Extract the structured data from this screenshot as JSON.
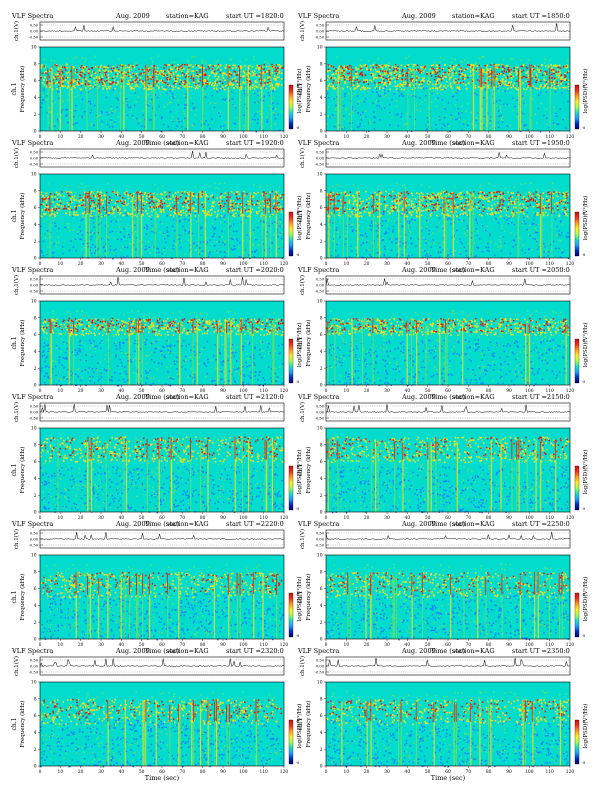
{
  "labels": {
    "header_title": "VLF Spectra",
    "header_date": "Aug. 2009",
    "header_station": "station=KAG",
    "header_start": "start UT =",
    "ch_label": "ch.1(V)",
    "ch_ticks": [
      "0.50",
      "0.00",
      "-0.50"
    ],
    "freq_label_ch": "ch.1",
    "freq_label": "Frequency (kHz)",
    "freq_ticks": [
      "0",
      "2",
      "4",
      "6",
      "8",
      "10"
    ],
    "time_label": "Time (sec)",
    "time_ticks": [
      "0",
      "10",
      "20",
      "30",
      "40",
      "50",
      "60",
      "70",
      "80",
      "90",
      "100",
      "110",
      "120"
    ],
    "colorbar_label": "log(PSD)(V²/Hz)",
    "colorbar_ticks": [
      "-6",
      "-8"
    ]
  },
  "colors": {
    "background": "#01dccd",
    "low": "#1e7dff",
    "mid": "#60e070",
    "high": "#f0e21f",
    "peak": "#e11414",
    "colorbar_stops": [
      "#cc1010",
      "#ee3020",
      "#ff9a20",
      "#ffee20",
      "#a8ff50",
      "#20e0c0",
      "#20a0ff",
      "#0030c0",
      "#000060"
    ]
  },
  "chart_data": [
    {
      "type": "heatmap",
      "start_ut": "1820:0",
      "x_range": [
        0,
        120
      ],
      "y_range_khz": [
        0,
        10
      ],
      "ch_range_v": [
        -0.5,
        0.5
      ],
      "activity": 0.75,
      "band_khz": [
        5,
        8
      ]
    },
    {
      "type": "heatmap",
      "start_ut": "1850:0",
      "x_range": [
        0,
        120
      ],
      "y_range_khz": [
        0,
        10
      ],
      "ch_range_v": [
        -0.5,
        0.5
      ],
      "activity": 0.75,
      "band_khz": [
        5,
        8
      ]
    },
    {
      "type": "heatmap",
      "start_ut": "1920:0",
      "x_range": [
        0,
        120
      ],
      "y_range_khz": [
        0,
        10
      ],
      "ch_range_v": [
        -0.5,
        0.5
      ],
      "activity": 0.6,
      "band_khz": [
        5,
        8
      ]
    },
    {
      "type": "heatmap",
      "start_ut": "1950:0",
      "x_range": [
        0,
        120
      ],
      "y_range_khz": [
        0,
        10
      ],
      "ch_range_v": [
        -0.5,
        0.5
      ],
      "activity": 0.6,
      "band_khz": [
        5,
        8
      ]
    },
    {
      "type": "heatmap",
      "start_ut": "2020:0",
      "x_range": [
        0,
        120
      ],
      "y_range_khz": [
        0,
        10
      ],
      "ch_range_v": [
        -0.5,
        0.5
      ],
      "activity": 0.45,
      "band_khz": [
        6,
        8
      ]
    },
    {
      "type": "heatmap",
      "start_ut": "2050:0",
      "x_range": [
        0,
        120
      ],
      "y_range_khz": [
        0,
        10
      ],
      "ch_range_v": [
        -0.5,
        0.5
      ],
      "activity": 0.45,
      "band_khz": [
        6,
        8
      ]
    },
    {
      "type": "heatmap",
      "start_ut": "2120:0",
      "x_range": [
        0,
        120
      ],
      "y_range_khz": [
        0,
        10
      ],
      "ch_range_v": [
        -0.5,
        0.5
      ],
      "activity": 0.4,
      "band_khz": [
        6,
        9
      ]
    },
    {
      "type": "heatmap",
      "start_ut": "2150:0",
      "x_range": [
        0,
        120
      ],
      "y_range_khz": [
        0,
        10
      ],
      "ch_range_v": [
        -0.5,
        0.5
      ],
      "activity": 0.4,
      "band_khz": [
        6,
        9
      ]
    },
    {
      "type": "heatmap",
      "start_ut": "2220:0",
      "x_range": [
        0,
        120
      ],
      "y_range_khz": [
        0,
        10
      ],
      "ch_range_v": [
        -0.5,
        0.5
      ],
      "activity": 0.35,
      "band_khz": [
        5,
        8
      ]
    },
    {
      "type": "heatmap",
      "start_ut": "2250:0",
      "x_range": [
        0,
        120
      ],
      "y_range_khz": [
        0,
        10
      ],
      "ch_range_v": [
        -0.5,
        0.5
      ],
      "activity": 0.35,
      "band_khz": [
        5,
        8
      ]
    },
    {
      "type": "heatmap",
      "start_ut": "2320:0",
      "x_range": [
        0,
        120
      ],
      "y_range_khz": [
        0,
        10
      ],
      "ch_range_v": [
        -0.5,
        0.5
      ],
      "activity": 0.35,
      "band_khz": [
        5,
        8
      ]
    },
    {
      "type": "heatmap",
      "start_ut": "2350:0",
      "x_range": [
        0,
        120
      ],
      "y_range_khz": [
        0,
        10
      ],
      "ch_range_v": [
        -0.5,
        0.5
      ],
      "activity": 0.35,
      "band_khz": [
        5,
        8
      ]
    }
  ]
}
